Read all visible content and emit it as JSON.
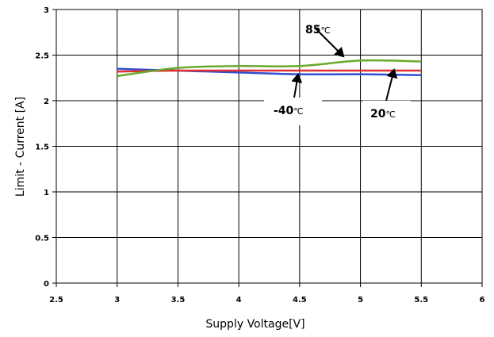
{
  "chart_data": {
    "type": "line",
    "xlabel": "Supply Voltage[V]",
    "ylabel": "Limit - Current [A]",
    "xlim": [
      2.5,
      6
    ],
    "ylim": [
      0,
      3
    ],
    "xticks": [
      "2.5",
      "3",
      "3.5",
      "4",
      "4.5",
      "5",
      "5.5",
      "6"
    ],
    "yticks": [
      "0",
      "0.5",
      "1",
      "1.5",
      "2",
      "2.5",
      "3"
    ],
    "grid": true,
    "series": [
      {
        "key": "minus40",
        "color": "#2f4fd0",
        "x": [
          3,
          3.5,
          4,
          4.5,
          5,
          5.5
        ],
        "values": [
          2.35,
          2.33,
          2.31,
          2.29,
          2.29,
          2.28
        ]
      },
      {
        "key": "t20",
        "color": "#e03030",
        "x": [
          3,
          3.5,
          4,
          4.5,
          5,
          5.5
        ],
        "values": [
          2.32,
          2.33,
          2.33,
          2.33,
          2.33,
          2.33
        ]
      },
      {
        "key": "t85",
        "color": "#6aaa2a",
        "x": [
          3,
          3.5,
          4,
          4.5,
          5,
          5.5
        ],
        "values": [
          2.27,
          2.36,
          2.38,
          2.38,
          2.44,
          2.43
        ]
      }
    ],
    "annotations": [
      {
        "key": "a85",
        "value": "85",
        "unit": "℃",
        "at": [
          4.88,
          2.43
        ]
      },
      {
        "key": "am40",
        "value": "-40",
        "unit": "℃",
        "at": [
          4.48,
          2.28
        ]
      },
      {
        "key": "a20",
        "value": "20",
        "unit": "℃",
        "at": [
          5.3,
          2.33
        ]
      }
    ]
  }
}
